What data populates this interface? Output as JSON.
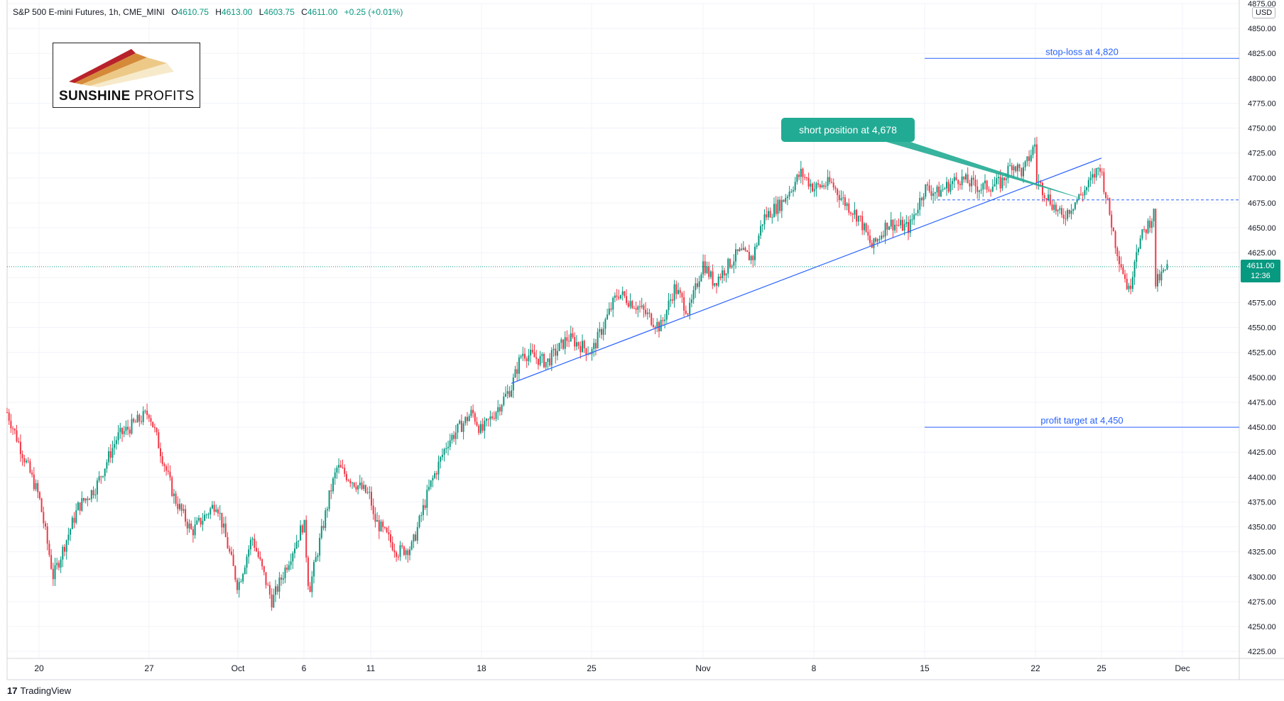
{
  "header": {
    "symbol": "S&P 500 E-mini Futures, 1h, CME_MINI",
    "o_label": "O",
    "o": "4610.75",
    "h_label": "H",
    "h": "4613.00",
    "l_label": "L",
    "l": "4603.75",
    "c_label": "C",
    "c": "4611.00",
    "change": "+0.25 (+0.01%)"
  },
  "logo": {
    "brand_bold": "SUNSHINE",
    "brand_light": "PROFITS"
  },
  "currency": "USD",
  "last_price": {
    "value": "4611.00",
    "countdown": "12:36"
  },
  "footer": {
    "brand_mark": "17",
    "brand": "TradingView"
  },
  "colors": {
    "up": "#089981",
    "down": "#f23645",
    "trendline": "#2962ff",
    "callout": "#22ab94",
    "grid": "#f0f3fa"
  },
  "chart_data": {
    "type": "candlestick",
    "interval": "1h",
    "ylim": [
      4218,
      4875
    ],
    "y_ticks": [
      4225,
      4250,
      4275,
      4300,
      4325,
      4350,
      4375,
      4400,
      4425,
      4450,
      4475,
      4500,
      4525,
      4550,
      4575,
      4600,
      4625,
      4650,
      4675,
      4700,
      4725,
      4750,
      4775,
      4800,
      4825,
      4850,
      4875
    ],
    "x_ticks": [
      {
        "label": "20",
        "x": "2021-09-20"
      },
      {
        "label": "27",
        "x": "2021-09-27"
      },
      {
        "label": "Oct",
        "x": "2021-10-01"
      },
      {
        "label": "6",
        "x": "2021-10-06"
      },
      {
        "label": "11",
        "x": "2021-10-11"
      },
      {
        "label": "18",
        "x": "2021-10-18"
      },
      {
        "label": "25",
        "x": "2021-10-25"
      },
      {
        "label": "Nov",
        "x": "2021-11-01"
      },
      {
        "label": "8",
        "x": "2021-11-08"
      },
      {
        "label": "15",
        "x": "2021-11-15"
      },
      {
        "label": "22",
        "x": "2021-11-22"
      },
      {
        "label": "25",
        "x": "2021-11-25"
      },
      {
        "label": "Dec",
        "x": "2021-12-01"
      }
    ],
    "price_path": [
      {
        "x": "2021-09-17",
        "y": 4465
      },
      {
        "x": "2021-09-20",
        "y": 4380
      },
      {
        "x": "2021-09-21",
        "y": 4300
      },
      {
        "x": "2021-09-22",
        "y": 4370
      },
      {
        "x": "2021-09-23",
        "y": 4390
      },
      {
        "x": "2021-09-24",
        "y": 4440
      },
      {
        "x": "2021-09-27",
        "y": 4465
      },
      {
        "x": "2021-09-28",
        "y": 4380
      },
      {
        "x": "2021-09-29",
        "y": 4345
      },
      {
        "x": "2021-09-30",
        "y": 4375
      },
      {
        "x": "2021-10-01",
        "y": 4290
      },
      {
        "x": "2021-10-04",
        "y": 4340
      },
      {
        "x": "2021-10-05",
        "y": 4275
      },
      {
        "x": "2021-10-06",
        "y": 4355
      },
      {
        "x": "2021-10-07",
        "y": 4285
      },
      {
        "x": "2021-10-08",
        "y": 4385
      },
      {
        "x": "2021-10-10",
        "y": 4410
      },
      {
        "x": "2021-10-11",
        "y": 4380
      },
      {
        "x": "2021-10-12",
        "y": 4360
      },
      {
        "x": "2021-10-13",
        "y": 4325
      },
      {
        "x": "2021-10-14",
        "y": 4330
      },
      {
        "x": "2021-10-15",
        "y": 4390
      },
      {
        "x": "2021-10-16",
        "y": 4435
      },
      {
        "x": "2021-10-17",
        "y": 4465
      },
      {
        "x": "2021-10-18",
        "y": 4445
      },
      {
        "x": "2021-10-19",
        "y": 4490
      },
      {
        "x": "2021-10-20",
        "y": 4525
      },
      {
        "x": "2021-10-21",
        "y": 4515
      },
      {
        "x": "2021-10-22",
        "y": 4540
      },
      {
        "x": "2021-10-25",
        "y": 4525
      },
      {
        "x": "2021-10-26",
        "y": 4585
      },
      {
        "x": "2021-10-27",
        "y": 4570
      },
      {
        "x": "2021-10-28",
        "y": 4550
      },
      {
        "x": "2021-10-29",
        "y": 4590
      },
      {
        "x": "2021-10-31",
        "y": 4565
      },
      {
        "x": "2021-11-01",
        "y": 4615
      },
      {
        "x": "2021-11-02",
        "y": 4595
      },
      {
        "x": "2021-11-03",
        "y": 4625
      },
      {
        "x": "2021-11-04",
        "y": 4620
      },
      {
        "x": "2021-11-05",
        "y": 4660
      },
      {
        "x": "2021-11-06",
        "y": 4675
      },
      {
        "x": "2021-11-07",
        "y": 4705
      },
      {
        "x": "2021-11-08",
        "y": 4690
      },
      {
        "x": "2021-11-09",
        "y": 4695
      },
      {
        "x": "2021-11-10",
        "y": 4675
      },
      {
        "x": "2021-11-11",
        "y": 4660
      },
      {
        "x": "2021-11-12",
        "y": 4630
      },
      {
        "x": "2021-11-13",
        "y": 4655
      },
      {
        "x": "2021-11-14",
        "y": 4650
      },
      {
        "x": "2021-11-15",
        "y": 4690
      },
      {
        "x": "2021-11-16",
        "y": 4685
      },
      {
        "x": "2021-11-17",
        "y": 4700
      },
      {
        "x": "2021-11-18",
        "y": 4690
      },
      {
        "x": "2021-11-19",
        "y": 4695
      },
      {
        "x": "2021-11-20",
        "y": 4715
      },
      {
        "x": "2021-11-21",
        "y": 4705
      },
      {
        "x": "2021-11-22",
        "y": 4735
      },
      {
        "x": "2021-11-22",
        "y": 4700
      },
      {
        "x": "2021-11-23",
        "y": 4660
      },
      {
        "x": "2021-11-24",
        "y": 4690
      },
      {
        "x": "2021-11-25",
        "y": 4715
      },
      {
        "x": "2021-11-25",
        "y": 4705
      },
      {
        "x": "2021-11-26",
        "y": 4630
      },
      {
        "x": "2021-11-27",
        "y": 4585
      },
      {
        "x": "2021-11-28",
        "y": 4630
      },
      {
        "x": "2021-11-29",
        "y": 4665
      },
      {
        "x": "2021-11-29",
        "y": 4592
      },
      {
        "x": "2021-11-30",
        "y": 4611
      }
    ],
    "trendline": {
      "from": {
        "x": "2021-10-19",
        "y": 4494
      },
      "to": {
        "x": "2021-11-25",
        "y": 4720
      }
    },
    "levels": [
      {
        "label": "stop-loss at 4,820",
        "y": 4820,
        "style": "solid",
        "from_x": "2021-11-15"
      },
      {
        "label": "profit target at 4,450",
        "y": 4450,
        "style": "solid",
        "from_x": "2021-11-15"
      },
      {
        "label": "",
        "y": 4678,
        "style": "dashed",
        "from_x": "2021-11-16"
      }
    ],
    "callout": {
      "label": "short position at 4,678",
      "x": "2021-11-13",
      "y": 4750,
      "target_x": "2021-11-24",
      "target_y": 4685
    },
    "current_price": 4611.0
  }
}
